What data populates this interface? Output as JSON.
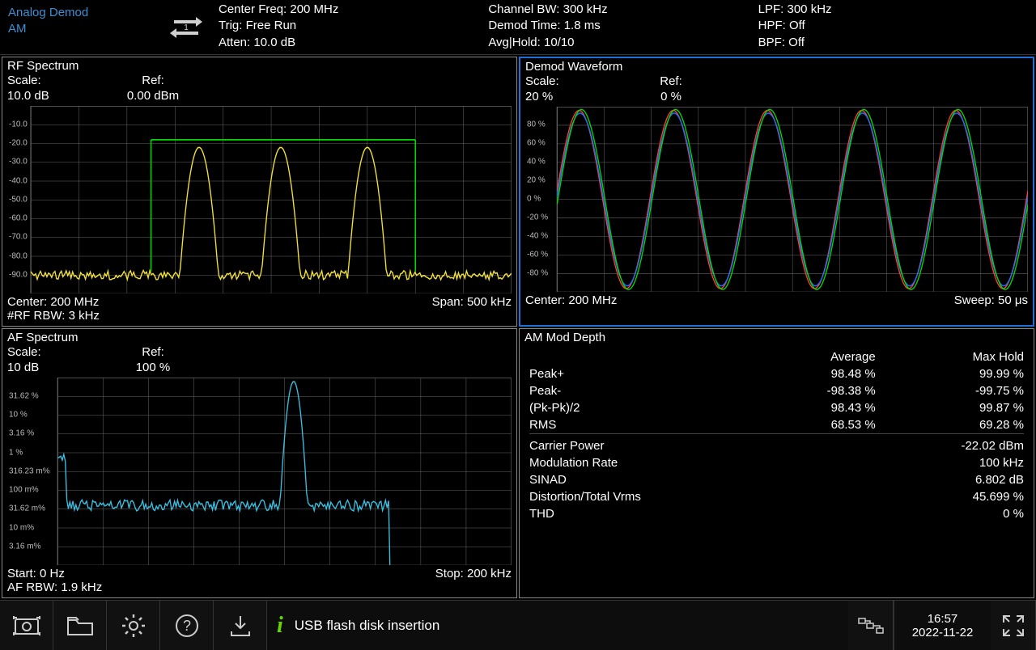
{
  "header": {
    "mode_line1": "Analog Demod",
    "mode_line2": "AM",
    "center_freq": "Center Freq: 200 MHz",
    "trig": "Trig: Free Run",
    "atten": "Atten: 10.0 dB",
    "channel_bw": "Channel BW: 300 kHz",
    "demod_time": "Demod Time: 1.8 ms",
    "avg_hold": "Avg|Hold: 10/10",
    "lpf": "LPF: 300 kHz",
    "hpf": "HPF: Off",
    "bpf": "BPF: Off"
  },
  "rf_spectrum": {
    "title": "RF Spectrum",
    "scale_label": "Scale:",
    "scale_value": "10.0 dB",
    "ref_label": "Ref:",
    "ref_value": "0.00 dBm",
    "center": "Center: 200 MHz",
    "span": "Span: 500 kHz",
    "rbw": "#RF RBW: 3 kHz",
    "y_ticks": [
      "-10.0",
      "-20.0",
      "-30.0",
      "-40.0",
      "-50.0",
      "-60.0",
      "-70.0",
      "-80.0",
      "-90.0"
    ],
    "ylim": [
      -100,
      0
    ],
    "trace_color": "#f2e13a",
    "marker_color": "#00d900",
    "grid_color": "#666666",
    "peaks_x": [
      0.35,
      0.52,
      0.7
    ],
    "peak_dbm": -22,
    "noise_floor_dbm": -90,
    "marker_x": [
      0.25,
      0.8
    ],
    "marker_top_dbm": -18
  },
  "af_spectrum": {
    "title": "AF Spectrum",
    "scale_label": "Scale:",
    "scale_value": "10 dB",
    "ref_label": "Ref:",
    "ref_value": "100 %",
    "start": "Start: 0 Hz",
    "stop": "Stop: 200 kHz",
    "rbw": "AF RBW: 1.9 kHz",
    "trace_color": "#39bfe0",
    "grid_color": "#666666",
    "y_ticks": [
      "31.62 %",
      "10 %",
      "3.16 %",
      "1 %",
      "316.23 m%",
      "100 m%",
      "31.62 m%",
      "10 m%",
      "3.16 m%"
    ],
    "peak_x": 0.52,
    "drop_x": 0.73
  },
  "demod": {
    "title": "Demod Waveform",
    "scale_label": "Scale:",
    "scale_value": "20 %",
    "ref_label": "Ref:",
    "ref_value": "0 %",
    "center": "Center: 200 MHz",
    "sweep": "Sweep: 50 μs",
    "y_ticks": [
      "80 %",
      "60 %",
      "40 %",
      "20 %",
      "0 %",
      "-20 %",
      "-40 %",
      "-60 %",
      "-80 %"
    ],
    "grid_color": "#666666",
    "traces": [
      {
        "color": "#ff3b3b",
        "amp": 0.98,
        "phase": 0.1
      },
      {
        "color": "#1e70ff",
        "amp": 0.95,
        "phase": 0.04
      },
      {
        "color": "#00d900",
        "amp": 0.99,
        "phase": -0.05
      }
    ],
    "cycles": 5
  },
  "mod_depth": {
    "title": "AM Mod Depth",
    "col_avg": "Average",
    "col_max": "Max Hold",
    "rows1": [
      {
        "label": "Peak+",
        "avg": "98.48 %",
        "max": "99.99 %"
      },
      {
        "label": "Peak-",
        "avg": "-98.38 %",
        "max": "-99.75 %"
      },
      {
        "label": "(Pk-Pk)/2",
        "avg": "98.43 %",
        "max": "99.87 %"
      },
      {
        "label": "RMS",
        "avg": "68.53 %",
        "max": "69.28 %"
      }
    ],
    "rows2": [
      {
        "label": "Carrier Power",
        "val": "-22.02 dBm"
      },
      {
        "label": "Modulation Rate",
        "val": "100 kHz"
      },
      {
        "label": "SINAD",
        "val": "6.802 dB"
      },
      {
        "label": "Distortion/Total Vrms",
        "val": "45.699 %"
      },
      {
        "label": "THD",
        "val": "0 %"
      }
    ]
  },
  "bottom": {
    "status": "USB flash disk insertion",
    "time": "16:57",
    "date": "2022-11-22",
    "info_color": "#67d600"
  }
}
